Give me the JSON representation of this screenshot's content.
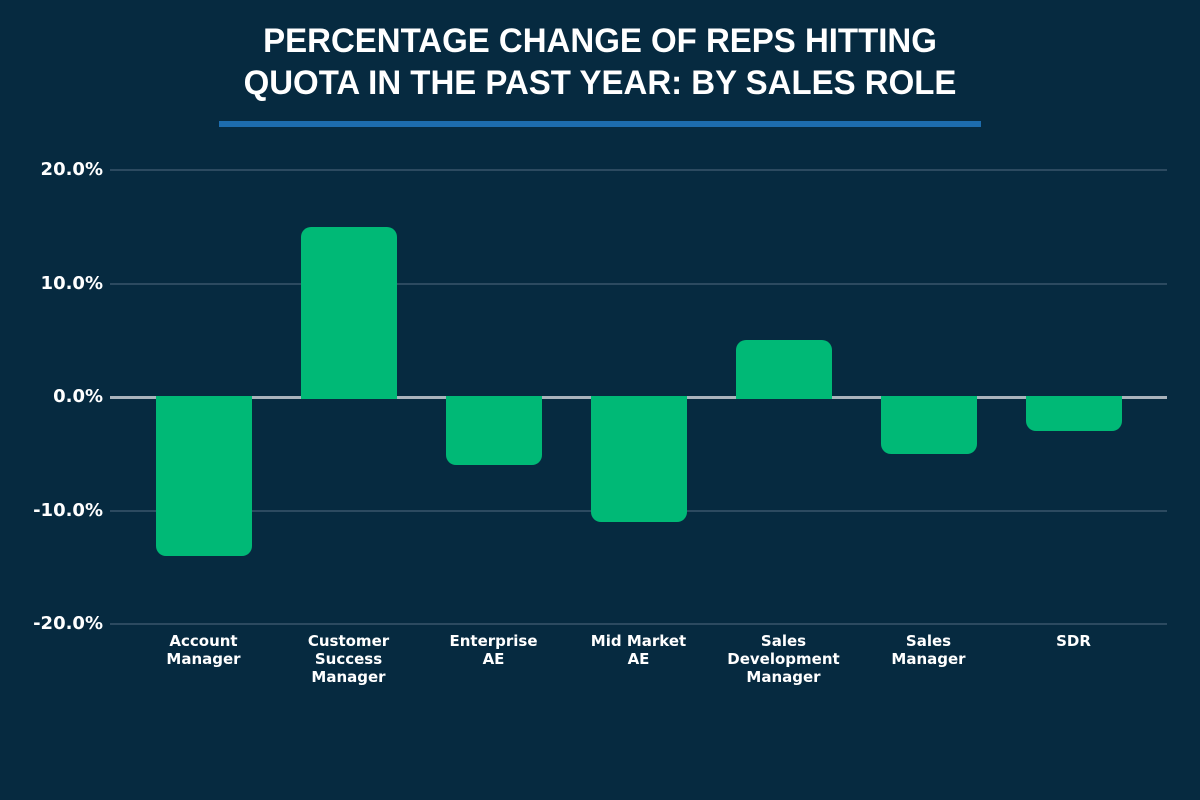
{
  "header": {
    "line1": "PERCENTAGE CHANGE OF REPS HITTING",
    "line2": "QUOTA IN THE PAST YEAR: BY SALES ROLE"
  },
  "colors": {
    "background": "#062A40",
    "bar_green": "#00B976",
    "title_underline_blue": "#1D6CAD",
    "zero_axis_line": "#A9B3BC",
    "gridline": "#2C4A60",
    "text": "#FFFFFF"
  },
  "chart_data": {
    "type": "bar",
    "title": "PERCENTAGE CHANGE OF REPS HITTING QUOTA IN THE PAST YEAR: BY SALES ROLE",
    "categories": [
      "Account Manager",
      "Customer Success Manager",
      "Enterprise AE",
      "Mid Market AE",
      "Sales Development Manager",
      "Sales Manager",
      "SDR"
    ],
    "category_display": [
      "Account\nManager",
      "Customer\nSuccess\nManager",
      "Enterprise\nAE",
      "Mid Market\nAE",
      "Sales\nDevelopment\nManager",
      "Sales\nManager",
      "SDR"
    ],
    "values": [
      -14,
      15,
      -6,
      -11,
      5,
      -5,
      -3
    ],
    "unit": "%",
    "xlabel": "",
    "ylabel": "",
    "ylim": [
      -20,
      20
    ],
    "ytick_labels": [
      "20.0%",
      "10.0%",
      "0.0%",
      "-10.0%",
      "-20.0%"
    ],
    "ytick_values": [
      20,
      10,
      0,
      -10,
      -20
    ],
    "grid": true,
    "legend": null,
    "bar_color": "#00B976"
  }
}
